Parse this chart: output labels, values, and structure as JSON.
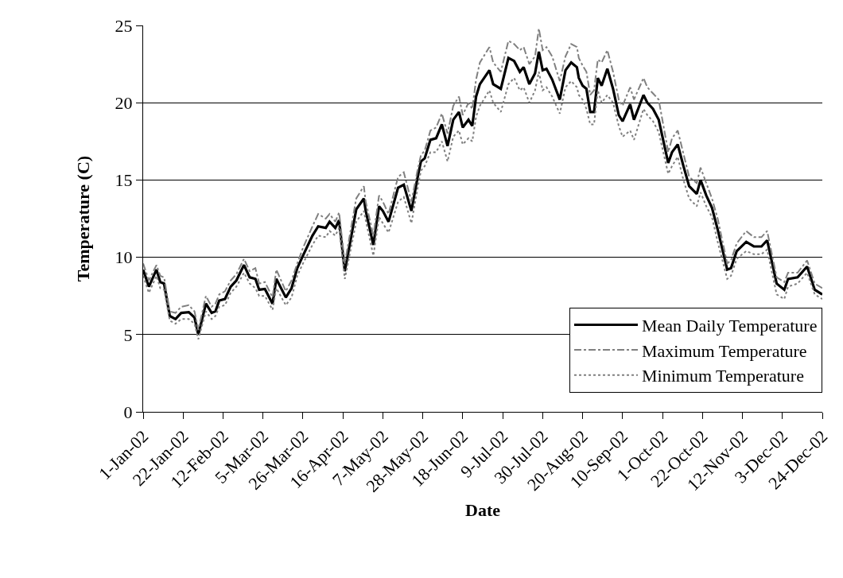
{
  "chart_data": {
    "type": "line",
    "xlabel": "Date",
    "ylabel": "Temperature (C)",
    "x": [
      "2002-01-01",
      "2002-01-04",
      "2002-01-08",
      "2002-01-10",
      "2002-01-12",
      "2002-01-15",
      "2002-01-18",
      "2002-01-21",
      "2002-01-25",
      "2002-01-28",
      "2002-01-30",
      "2002-02-03",
      "2002-02-06",
      "2002-02-08",
      "2002-02-10",
      "2002-02-13",
      "2002-02-16",
      "2002-02-19",
      "2002-02-23",
      "2002-02-26",
      "2002-03-01",
      "2002-03-03",
      "2002-03-06",
      "2002-03-10",
      "2002-03-12",
      "2002-03-17",
      "2002-03-20",
      "2002-03-23",
      "2002-03-26",
      "2002-03-31",
      "2002-04-03",
      "2002-04-07",
      "2002-04-09",
      "2002-04-12",
      "2002-04-14",
      "2002-04-17",
      "2002-04-23",
      "2002-04-27",
      "2002-04-28",
      "2002-05-02",
      "2002-05-05",
      "2002-05-07",
      "2002-05-10",
      "2002-05-15",
      "2002-05-18",
      "2002-05-22",
      "2002-05-25",
      "2002-05-27",
      "2002-05-29",
      "2002-06-01",
      "2002-06-04",
      "2002-06-07",
      "2002-06-10",
      "2002-06-13",
      "2002-06-16",
      "2002-06-18",
      "2002-06-21",
      "2002-06-23",
      "2002-06-25",
      "2002-06-27",
      "2002-07-02",
      "2002-07-04",
      "2002-07-08",
      "2002-07-12",
      "2002-07-15",
      "2002-07-18",
      "2002-07-20",
      "2002-07-23",
      "2002-07-26",
      "2002-07-28",
      "2002-07-30",
      "2002-08-01",
      "2002-08-04",
      "2002-08-08",
      "2002-08-11",
      "2002-08-14",
      "2002-08-17",
      "2002-08-18",
      "2002-08-20",
      "2002-08-22",
      "2002-08-24",
      "2002-08-26",
      "2002-08-28",
      "2002-08-30",
      "2002-09-02",
      "2002-09-05",
      "2002-09-08",
      "2002-09-10",
      "2002-09-14",
      "2002-09-16",
      "2002-09-21",
      "2002-09-23",
      "2002-09-26",
      "2002-09-29",
      "2002-10-04",
      "2002-10-06",
      "2002-10-09",
      "2002-10-12",
      "2002-10-15",
      "2002-10-19",
      "2002-10-21",
      "2002-10-24",
      "2002-10-27",
      "2002-10-30",
      "2002-11-04",
      "2002-11-06",
      "2002-11-09",
      "2002-11-14",
      "2002-11-18",
      "2002-11-22",
      "2002-11-25",
      "2002-11-30",
      "2002-12-04",
      "2002-12-06",
      "2002-12-11",
      "2002-12-16",
      "2002-12-20",
      "2002-12-24"
    ],
    "series": [
      {
        "name": "Mean Daily Temperature",
        "color": "#000000",
        "line_style": "solid",
        "values": [
          9.2,
          8.1,
          9.2,
          8.4,
          8.3,
          6.2,
          6.0,
          6.4,
          6.45,
          6.1,
          5.0,
          7.0,
          6.4,
          6.5,
          7.2,
          7.3,
          8.1,
          8.5,
          9.5,
          8.7,
          8.6,
          7.9,
          7.95,
          7.0,
          8.6,
          7.4,
          8.0,
          9.3,
          10.1,
          11.4,
          12.0,
          11.9,
          12.3,
          11.9,
          12.4,
          9.1,
          13.1,
          13.8,
          13.0,
          10.8,
          13.3,
          13.0,
          12.3,
          14.5,
          14.7,
          13.0,
          15.0,
          16.2,
          16.4,
          17.6,
          17.7,
          18.6,
          17.2,
          18.9,
          19.4,
          18.4,
          18.9,
          18.5,
          20.4,
          21.2,
          22.1,
          21.2,
          20.9,
          22.9,
          22.7,
          22.0,
          22.3,
          21.2,
          21.9,
          23.3,
          22.1,
          22.2,
          21.5,
          20.2,
          22.1,
          22.6,
          22.3,
          21.6,
          21.1,
          20.9,
          19.4,
          19.4,
          21.6,
          21.1,
          22.2,
          20.9,
          19.2,
          18.8,
          19.9,
          18.9,
          20.5,
          20.0,
          19.6,
          18.9,
          16.1,
          16.8,
          17.3,
          15.9,
          14.6,
          14.1,
          15.0,
          14.0,
          13.2,
          11.8,
          9.2,
          9.3,
          10.4,
          11.0,
          10.7,
          10.7,
          11.1,
          8.3,
          7.9,
          8.6,
          8.7,
          9.4,
          7.9,
          7.6
        ]
      },
      {
        "name": "Maximum Temperature",
        "color": "#808080",
        "line_style": "dashed",
        "values": [
          9.6,
          8.5,
          9.5,
          8.8,
          8.7,
          6.5,
          6.4,
          6.8,
          6.9,
          6.5,
          5.3,
          7.5,
          6.8,
          7.0,
          7.6,
          7.8,
          8.5,
          8.9,
          9.9,
          9.1,
          9.3,
          8.3,
          8.4,
          7.4,
          9.2,
          7.8,
          8.5,
          9.6,
          10.6,
          12.0,
          12.8,
          12.5,
          12.8,
          12.3,
          12.9,
          9.6,
          13.8,
          14.6,
          13.6,
          11.4,
          14.0,
          13.6,
          12.8,
          15.2,
          15.5,
          13.6,
          15.5,
          16.6,
          16.9,
          18.2,
          18.4,
          19.3,
          18.0,
          19.8,
          20.4,
          19.2,
          20.0,
          19.6,
          21.5,
          22.6,
          23.6,
          22.6,
          22.0,
          24.0,
          23.8,
          23.4,
          23.6,
          22.5,
          23.0,
          24.8,
          23.4,
          23.6,
          23.0,
          21.4,
          23.0,
          23.8,
          23.6,
          22.9,
          22.4,
          22.0,
          20.5,
          20.8,
          22.8,
          22.6,
          23.4,
          22.0,
          20.2,
          19.8,
          21.0,
          20.2,
          21.6,
          21.0,
          20.6,
          20.2,
          16.8,
          17.7,
          18.2,
          16.7,
          15.2,
          14.8,
          15.8,
          14.8,
          13.8,
          12.5,
          9.6,
          9.8,
          10.9,
          11.7,
          11.3,
          11.3,
          11.7,
          8.7,
          8.4,
          9.0,
          9.0,
          9.8,
          8.3,
          8.0
        ]
      },
      {
        "name": "Minimum Temperature",
        "color": "#808080",
        "line_style": "dotted",
        "values": [
          8.8,
          7.7,
          8.8,
          8.0,
          7.9,
          5.9,
          5.7,
          6.0,
          6.0,
          5.7,
          4.7,
          6.5,
          6.0,
          6.2,
          6.8,
          6.9,
          7.7,
          8.1,
          9.0,
          8.3,
          8.0,
          7.5,
          7.5,
          6.6,
          8.0,
          6.9,
          7.4,
          8.8,
          9.6,
          10.8,
          11.4,
          11.3,
          11.7,
          11.4,
          11.9,
          8.6,
          12.3,
          13.0,
          12.4,
          10.1,
          12.6,
          12.2,
          11.6,
          13.6,
          13.9,
          12.2,
          14.3,
          15.6,
          15.9,
          16.8,
          16.8,
          17.5,
          16.2,
          17.8,
          18.2,
          17.3,
          17.7,
          17.5,
          19.1,
          19.8,
          20.8,
          20.0,
          19.4,
          21.2,
          21.6,
          20.8,
          21.0,
          20.0,
          20.8,
          22.0,
          20.8,
          21.0,
          20.4,
          19.3,
          21.0,
          21.4,
          21.0,
          20.5,
          20.2,
          19.6,
          18.6,
          18.6,
          20.8,
          20.0,
          20.5,
          20.0,
          18.5,
          17.8,
          18.2,
          17.6,
          19.6,
          19.2,
          18.8,
          18.1,
          15.4,
          15.9,
          16.5,
          15.0,
          13.8,
          13.3,
          14.2,
          13.3,
          12.6,
          11.0,
          8.6,
          8.8,
          9.9,
          10.4,
          10.2,
          10.2,
          10.5,
          7.6,
          7.3,
          8.1,
          8.3,
          9.0,
          7.6,
          7.3
        ]
      }
    ],
    "xlim": [
      "2002-01-01",
      "2002-12-24"
    ],
    "xticks": [
      {
        "value": "2002-01-01",
        "label": "1-Jan-02"
      },
      {
        "value": "2002-01-22",
        "label": "22-Jan-02"
      },
      {
        "value": "2002-02-12",
        "label": "12-Feb-02"
      },
      {
        "value": "2002-03-05",
        "label": "5-Mar-02"
      },
      {
        "value": "2002-03-26",
        "label": "26-Mar-02"
      },
      {
        "value": "2002-04-16",
        "label": "16-Apr-02"
      },
      {
        "value": "2002-05-07",
        "label": "7-May-02"
      },
      {
        "value": "2002-05-28",
        "label": "28-May-02"
      },
      {
        "value": "2002-06-18",
        "label": "18-Jun-02"
      },
      {
        "value": "2002-07-09",
        "label": "9-Jul-02"
      },
      {
        "value": "2002-07-30",
        "label": "30-Jul-02"
      },
      {
        "value": "2002-08-20",
        "label": "20-Aug-02"
      },
      {
        "value": "2002-09-10",
        "label": "10-Sep-02"
      },
      {
        "value": "2002-10-01",
        "label": "1-Oct-02"
      },
      {
        "value": "2002-10-22",
        "label": "22-Oct-02"
      },
      {
        "value": "2002-11-12",
        "label": "12-Nov-02"
      },
      {
        "value": "2002-12-03",
        "label": "3-Dec-02"
      },
      {
        "value": "2002-12-24",
        "label": "24-Dec-02"
      }
    ],
    "ylim": [
      0,
      25
    ],
    "yticks": [
      0,
      5,
      10,
      15,
      20,
      25
    ],
    "grid": "y",
    "legend": "bottom right",
    "marker": "none"
  }
}
